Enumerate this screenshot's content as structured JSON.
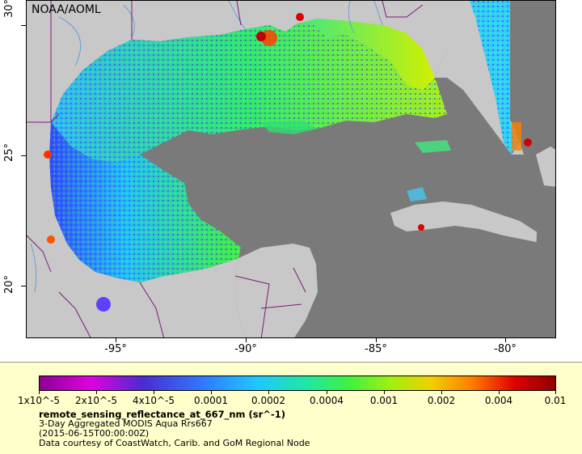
{
  "map": {
    "org_label": "NOAA/AOML",
    "lat_ticks": [
      "30°",
      "25°",
      "20°"
    ],
    "lon_ticks": [
      "-95°",
      "-90°",
      "-85°",
      "-80°"
    ],
    "colors": {
      "land": "#c8c8c8",
      "water_nodata": "#7a7a7a",
      "borders": "#7a1a7a",
      "rivers": "#6aa0d8"
    }
  },
  "legend": {
    "colorbar_ticks": [
      "1x10^-5",
      "2x10^-5",
      "4x10^-5",
      "0.0001",
      "0.0002",
      "0.0004",
      "0.001",
      "0.002",
      "0.004",
      "0.01"
    ],
    "variable": "remote_sensing_reflectance_at_667_nm (sr^-1)",
    "dataset": "3-Day Aggregated MODIS Aqua Rrs667",
    "time": "(2015-06-15T00:00:00Z)",
    "credit": "Data courtesy of CoastWatch, Carib. and GoM Regional Node",
    "background_color": "#ffffcc"
  }
}
